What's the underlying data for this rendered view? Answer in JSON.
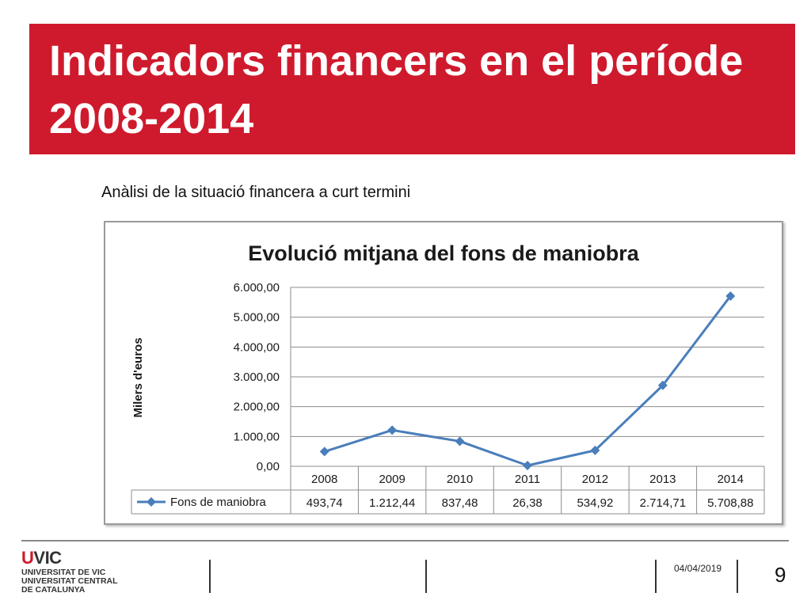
{
  "slide": {
    "title": "Indicadors financers en el període 2008-2014",
    "subtitle": "Anàlisi de la situació financera a curt termini",
    "date": "04/04/2019",
    "page_number": "9",
    "accent_color": "#cf1a2d"
  },
  "logo": {
    "mark_u": "U",
    "mark_vic": "VIC",
    "line1": "UNIVERSITAT DE VIC",
    "line2": "UNIVERSITAT CENTRAL",
    "line3": "DE CATALUNYA"
  },
  "chart_data": {
    "type": "line",
    "title": "Evolució mitjana del fons de maniobra",
    "ylabel": "Milers d'euros",
    "xlabel": "",
    "ylim": [
      0,
      6000
    ],
    "yticks": [
      "0,00",
      "1.000,00",
      "2.000,00",
      "3.000,00",
      "4.000,00",
      "5.000,00",
      "6.000,00"
    ],
    "categories": [
      "2008",
      "2009",
      "2010",
      "2011",
      "2012",
      "2013",
      "2014"
    ],
    "grid": true,
    "legend_position": "data-table",
    "series": [
      {
        "name": "Fons de maniobra",
        "color": "#4a7ebb",
        "values": [
          493.74,
          1212.44,
          837.48,
          26.38,
          534.92,
          2714.71,
          5708.88
        ],
        "labels": [
          "493,74",
          "1.212,44",
          "837,48",
          "26,38",
          "534,92",
          "2.714,71",
          "5.708,88"
        ]
      }
    ]
  }
}
